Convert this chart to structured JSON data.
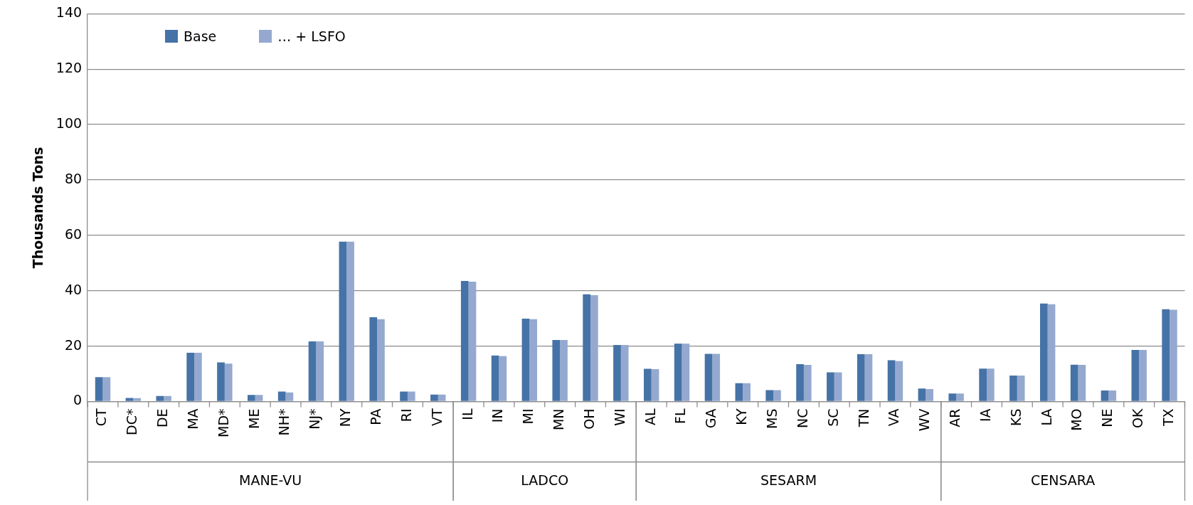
{
  "chart_data": {
    "type": "bar",
    "ylabel": "Thousands Tons",
    "categories": [
      "CT",
      "DC*",
      "DE",
      "MA",
      "MD*",
      "ME",
      "NH*",
      "NJ*",
      "NY",
      "PA",
      "RI",
      "VT",
      "IL",
      "IN",
      "MI",
      "MN",
      "OH",
      "WI",
      "AL",
      "FL",
      "GA",
      "KY",
      "MS",
      "NC",
      "SC",
      "TN",
      "VA",
      "WV",
      "AR",
      "IA",
      "KS",
      "LA",
      "MO",
      "NE",
      "OK",
      "TX"
    ],
    "series": [
      {
        "name": "Base",
        "color": "#4673a7",
        "values": [
          8.8,
          1.3,
          2.0,
          17.6,
          14.1,
          2.4,
          3.6,
          21.7,
          57.7,
          30.4,
          3.6,
          2.5,
          43.5,
          16.6,
          29.9,
          22.2,
          38.7,
          20.4,
          11.8,
          20.9,
          17.2,
          6.6,
          4.1,
          13.5,
          10.5,
          17.1,
          14.9,
          4.7,
          2.9,
          11.9,
          9.4,
          35.4,
          13.3,
          4.0,
          18.6,
          33.3
        ]
      },
      {
        "name": "… + LSFO",
        "color": "#95a9d0",
        "values": [
          8.8,
          1.2,
          2.0,
          17.6,
          13.7,
          2.4,
          3.3,
          21.7,
          57.7,
          29.7,
          3.6,
          2.5,
          43.3,
          16.4,
          29.7,
          22.2,
          38.4,
          20.4,
          11.7,
          20.9,
          17.2,
          6.6,
          4.1,
          13.2,
          10.5,
          17.1,
          14.6,
          4.5,
          2.9,
          11.9,
          9.4,
          35.1,
          13.2,
          4.0,
          18.6,
          33.1
        ]
      }
    ],
    "annotations": [
      "MANE-VU",
      "LADCO",
      "SESARM",
      "CENSARA"
    ],
    "ylim": [
      0,
      140
    ],
    "yticks": [
      0,
      20,
      40,
      60,
      80,
      100,
      120,
      140
    ],
    "grid": "y",
    "legend": "top left"
  }
}
